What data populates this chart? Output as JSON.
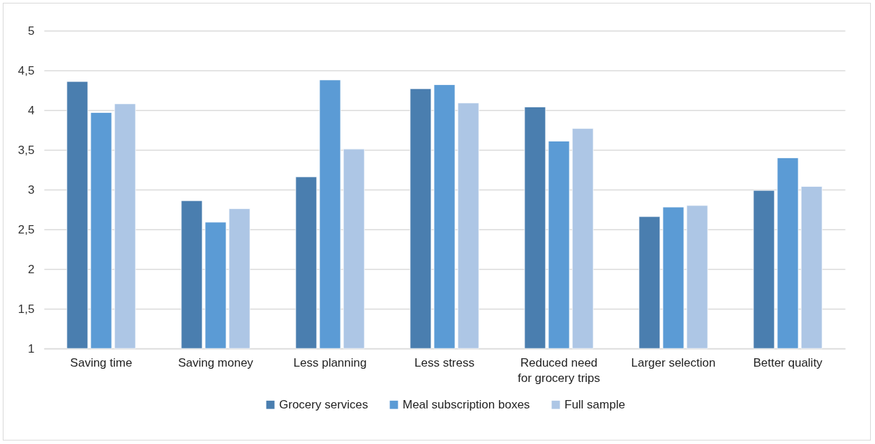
{
  "chart_data": {
    "type": "bar",
    "categories": [
      "Saving time",
      "Saving money",
      "Less planning",
      "Less stress",
      "Reduced need\nfor grocery trips",
      "Larger selection",
      "Better quality"
    ],
    "series": [
      {
        "name": "Grocery services",
        "color": "#4a7eaf",
        "values": [
          4.36,
          2.86,
          3.16,
          4.27,
          4.04,
          2.66,
          2.99
        ]
      },
      {
        "name": "Meal subscription boxes",
        "color": "#5b9bd5",
        "values": [
          3.97,
          2.59,
          4.38,
          4.32,
          3.61,
          2.78,
          3.4
        ]
      },
      {
        "name": "Full sample",
        "color": "#adc6e5",
        "values": [
          4.08,
          2.76,
          3.51,
          4.09,
          3.77,
          2.8,
          3.04
        ]
      }
    ],
    "ylim": [
      1,
      5
    ],
    "yticks": [
      1,
      {
        "value": 1.5,
        "label": "1,5"
      },
      2,
      {
        "value": 2.5,
        "label": "2,5"
      },
      3,
      {
        "value": 3.5,
        "label": "3,5"
      },
      4,
      {
        "value": 4.5,
        "label": "4,5"
      },
      5
    ],
    "grid": "y",
    "legend": "bottom"
  }
}
